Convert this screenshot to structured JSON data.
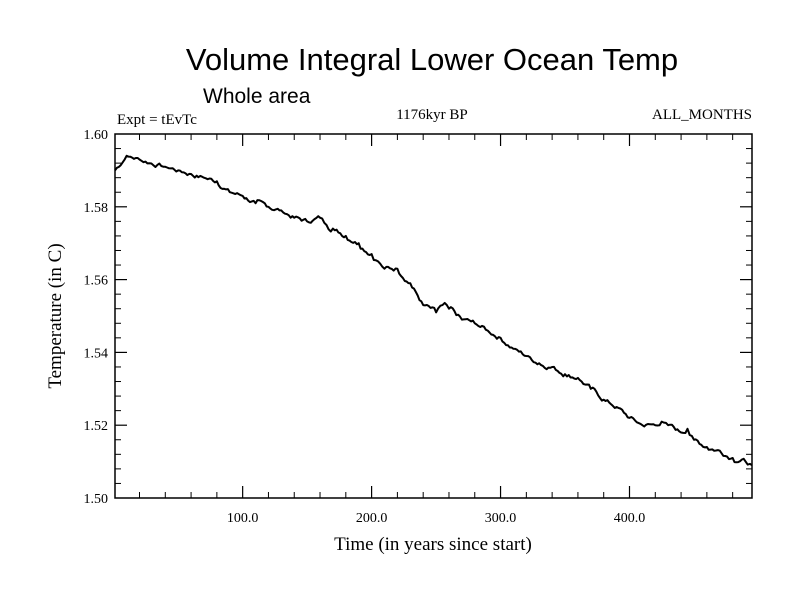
{
  "chart_data": {
    "type": "line",
    "title": "Volume Integral Lower Ocean Temp",
    "subtitle": "Whole area",
    "left_label": "Expt = tEvTc",
    "center_label": "1176kyr BP",
    "right_label": "ALL_MONTHS",
    "xlabel": "Time (in years since start)",
    "ylabel": "Temperature (in C)",
    "xlim": [
      1,
      495
    ],
    "ylim": [
      1.5,
      1.6
    ],
    "x_ticks": [
      100,
      200,
      300,
      400
    ],
    "x_tick_labels": [
      "100.0",
      "200.0",
      "300.0",
      "400.0"
    ],
    "y_ticks": [
      1.5,
      1.52,
      1.54,
      1.56,
      1.58,
      1.6
    ],
    "y_tick_labels": [
      "1.50",
      "1.52",
      "1.54",
      "1.56",
      "1.58",
      "1.60"
    ],
    "x_minor_step": 20,
    "y_minor_step": 0.004,
    "series": [
      {
        "name": "Volume integral lower ocean temperature",
        "color": "#000000",
        "x": [
          1,
          10,
          20,
          40,
          50,
          60,
          70,
          80,
          90,
          100,
          110,
          120,
          130,
          140,
          150,
          160,
          165,
          170,
          180,
          190,
          200,
          205,
          210,
          220,
          230,
          240,
          250,
          255,
          260,
          270,
          280,
          290,
          300,
          310,
          320,
          330,
          340,
          350,
          360,
          370,
          380,
          390,
          400,
          410,
          420,
          425,
          430,
          440,
          445,
          450,
          460,
          470,
          480,
          490,
          495
        ],
        "y": [
          1.59,
          1.594,
          1.593,
          1.591,
          1.59,
          1.589,
          1.588,
          1.587,
          1.584,
          1.583,
          1.581,
          1.58,
          1.579,
          1.577,
          1.576,
          1.577,
          1.575,
          1.574,
          1.572,
          1.57,
          1.567,
          1.565,
          1.563,
          1.563,
          1.559,
          1.553,
          1.551,
          1.553,
          1.552,
          1.549,
          1.548,
          1.546,
          1.544,
          1.541,
          1.539,
          1.537,
          1.536,
          1.534,
          1.533,
          1.53,
          1.527,
          1.525,
          1.522,
          1.52,
          1.52,
          1.521,
          1.52,
          1.518,
          1.519,
          1.516,
          1.514,
          1.513,
          1.511,
          1.51,
          1.509
        ]
      }
    ]
  }
}
